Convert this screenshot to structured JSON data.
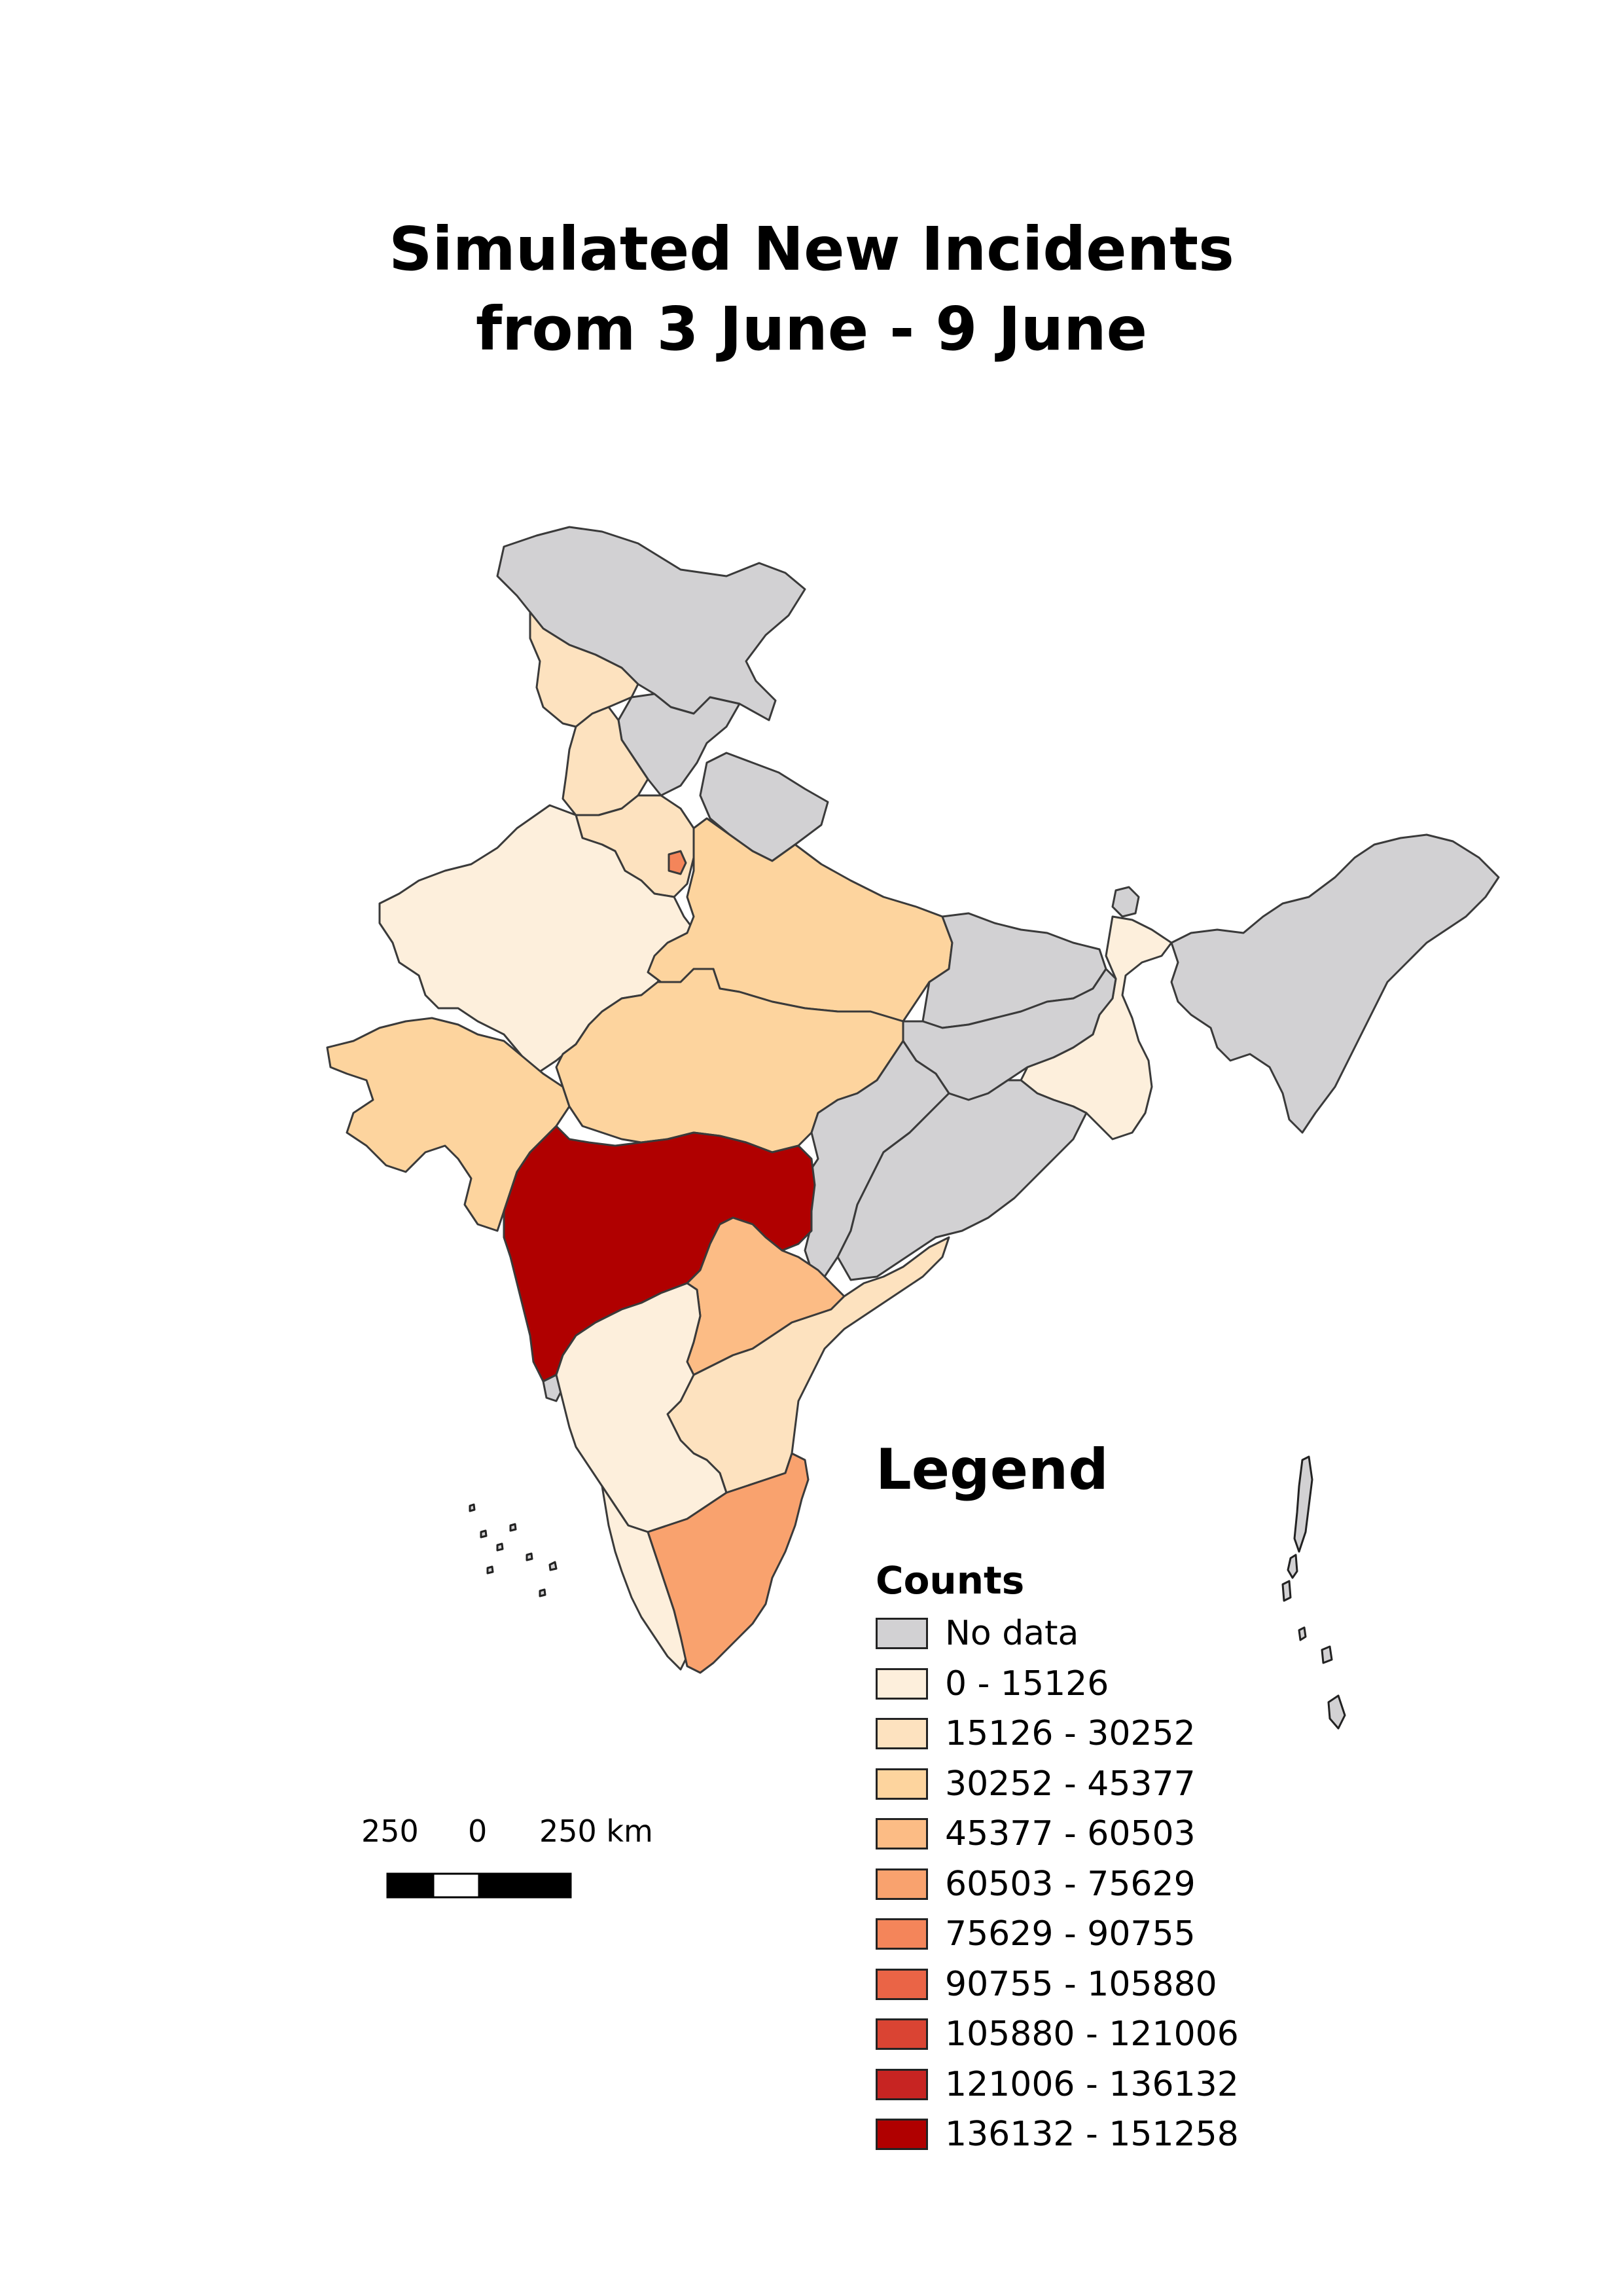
{
  "title": {
    "line1": "Simulated New Incidents",
    "line2": "from 3 June - 9 June"
  },
  "legend": {
    "heading": "Legend",
    "subheading": "Counts",
    "items": [
      {
        "label": "No data",
        "color": "#d2d1d3"
      },
      {
        "label": "0 - 15126",
        "color": "#fdefdc"
      },
      {
        "label": "15126 - 30252",
        "color": "#fde2bf"
      },
      {
        "label": "30252 - 45377",
        "color": "#fdd49e"
      },
      {
        "label": "45377 - 60503",
        "color": "#fcbc85"
      },
      {
        "label": "60503 - 75629",
        "color": "#f9a26e"
      },
      {
        "label": "75629 - 90755",
        "color": "#f4855a"
      },
      {
        "label": "90755 - 105880",
        "color": "#ea6446"
      },
      {
        "label": "105880 - 121006",
        "color": "#da4433"
      },
      {
        "label": "121006 - 136132",
        "color": "#c72422"
      },
      {
        "label": "136132 - 151258",
        "color": "#b00000"
      }
    ]
  },
  "scale_bar": {
    "left_label": "250",
    "mid_label": "0",
    "right_label": "250 km"
  },
  "map_colors": {
    "no_data": "#d2d1d3",
    "c1": "#fdefdc",
    "c2": "#fde2bf",
    "c3": "#fdd49e",
    "c4": "#fcbc85",
    "c5": "#f9a26e",
    "c6": "#f4855a",
    "c10": "#b00000",
    "outline": "#3a3a3a"
  },
  "regions": [
    {
      "name": "Jammu and Kashmir",
      "class": "No data"
    },
    {
      "name": "Ladakh",
      "class": "15126 - 30252"
    },
    {
      "name": "Himachal Pradesh",
      "class": "No data"
    },
    {
      "name": "Punjab",
      "class": "15126 - 30252"
    },
    {
      "name": "Uttarakhand",
      "class": "No data"
    },
    {
      "name": "Haryana",
      "class": "15126 - 30252"
    },
    {
      "name": "Delhi",
      "class": "75629 - 90755"
    },
    {
      "name": "Rajasthan",
      "class": "0 - 15126"
    },
    {
      "name": "Uttar Pradesh",
      "class": "30252 - 45377"
    },
    {
      "name": "Bihar",
      "class": "No data"
    },
    {
      "name": "Gujarat",
      "class": "30252 - 45377"
    },
    {
      "name": "Madhya Pradesh",
      "class": "30252 - 45377"
    },
    {
      "name": "Jharkhand",
      "class": "No data"
    },
    {
      "name": "West Bengal",
      "class": "0 - 15126"
    },
    {
      "name": "Sikkim",
      "class": "No data"
    },
    {
      "name": "North East",
      "class": "No data"
    },
    {
      "name": "Chhattisgarh",
      "class": "No data"
    },
    {
      "name": "Odisha",
      "class": "No data"
    },
    {
      "name": "Maharashtra",
      "class": "136132 - 151258"
    },
    {
      "name": "Telangana",
      "class": "45377 - 60503"
    },
    {
      "name": "Andhra Pradesh",
      "class": "15126 - 30252"
    },
    {
      "name": "Goa",
      "class": "No data"
    },
    {
      "name": "Karnataka",
      "class": "0 - 15126"
    },
    {
      "name": "Kerala",
      "class": "0 - 15126"
    },
    {
      "name": "Tamil Nadu",
      "class": "60503 - 75629"
    },
    {
      "name": "Andaman and Nicobar Islands",
      "class": "No data"
    },
    {
      "name": "Lakshadweep",
      "class": "No data"
    }
  ]
}
